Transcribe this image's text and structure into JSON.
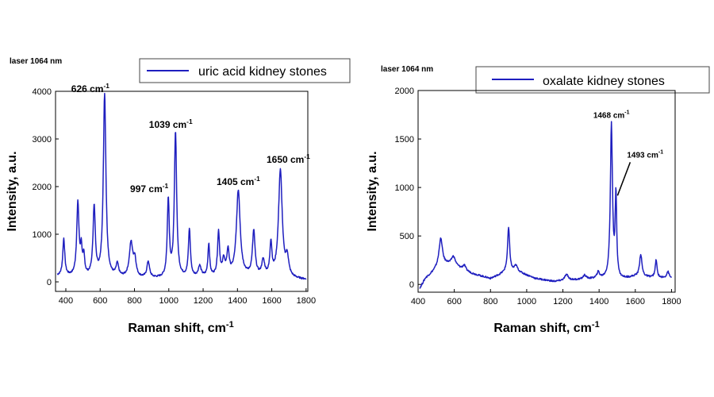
{
  "chart_data": [
    {
      "type": "line",
      "laser_label": "laser 1064 nm",
      "legend": "uric acid kidney stones",
      "xlabel": "Raman shift, cm",
      "xlabel_sup": "-1",
      "ylabel": "Intensity, a.u.",
      "xlim": [
        340,
        1810
      ],
      "ylim": [
        -200,
        4000
      ],
      "xticks": [
        400,
        600,
        800,
        1000,
        1200,
        1400,
        1600,
        1800
      ],
      "yticks": [
        0,
        1000,
        2000,
        3000,
        4000
      ],
      "color": "#1f1fbf",
      "series": [
        {
          "name": "uric acid kidney stones",
          "baseline": [
            [
              350,
              120
            ],
            [
              600,
              80
            ],
            [
              1000,
              60
            ],
            [
              1400,
              120
            ],
            [
              1800,
              40
            ]
          ],
          "peaks": [
            [
              388,
              780,
              7
            ],
            [
              470,
              1520,
              8
            ],
            [
              490,
              520,
              6
            ],
            [
              505,
              380,
              6
            ],
            [
              565,
              1450,
              8
            ],
            [
              626,
              3850,
              9
            ],
            [
              700,
              260,
              9
            ],
            [
              780,
              720,
              12
            ],
            [
              802,
              350,
              9
            ],
            [
              880,
              340,
              9
            ],
            [
              997,
              1640,
              7
            ],
            [
              1039,
              3060,
              8
            ],
            [
              1120,
              1000,
              7
            ],
            [
              1180,
              220,
              10
            ],
            [
              1233,
              680,
              6
            ],
            [
              1290,
              920,
              7
            ],
            [
              1320,
              320,
              8
            ],
            [
              1345,
              500,
              8
            ],
            [
              1405,
              1780,
              13
            ],
            [
              1495,
              930,
              9
            ],
            [
              1550,
              320,
              10
            ],
            [
              1595,
              680,
              7
            ],
            [
              1650,
              2250,
              13
            ],
            [
              1690,
              380,
              10
            ]
          ],
          "range": [
            350,
            1800
          ]
        }
      ],
      "annotations": [
        {
          "text": "626 cm",
          "sup": "-1",
          "x": 626,
          "y": 3850
        },
        {
          "text": "1039 cm",
          "sup": "-1",
          "x": 1039,
          "y": 3100
        },
        {
          "text": "997 cm",
          "sup": "-1",
          "x": 997,
          "y": 1750
        },
        {
          "text": "1405 cm",
          "sup": "-1",
          "x": 1405,
          "y": 1900
        },
        {
          "text": "1650 cm",
          "sup": "-1",
          "x": 1650,
          "y": 2300
        }
      ]
    },
    {
      "type": "line",
      "laser_label": "laser 1064 nm",
      "legend": "oxalate kidney stones",
      "xlabel": "Raman shift, cm",
      "xlabel_sup": "-1",
      "ylabel": "Intensity, a.u.",
      "xlim": [
        400,
        1820
      ],
      "ylim": [
        -80,
        2000
      ],
      "xticks": [
        400,
        600,
        800,
        1000,
        1200,
        1400,
        1600,
        1800
      ],
      "yticks": [
        0,
        500,
        1000,
        1500,
        2000
      ],
      "color": "#1f1fbf",
      "series": [
        {
          "name": "oxalate kidney stones",
          "baseline": [
            [
              410,
              -40
            ],
            [
              440,
              60
            ],
            [
              500,
              150
            ],
            [
              560,
              200
            ],
            [
              620,
              170
            ],
            [
              700,
              110
            ],
            [
              800,
              60
            ],
            [
              880,
              120
            ],
            [
              950,
              130
            ],
            [
              1050,
              60
            ],
            [
              1150,
              30
            ],
            [
              1300,
              50
            ],
            [
              1400,
              60
            ],
            [
              1500,
              40
            ],
            [
              1600,
              80
            ],
            [
              1800,
              60
            ]
          ],
          "peaks": [
            [
              525,
              300,
              12
            ],
            [
              595,
              100,
              14
            ],
            [
              655,
              50,
              10
            ],
            [
              900,
              460,
              7
            ],
            [
              940,
              60,
              10
            ],
            [
              1220,
              60,
              12
            ],
            [
              1320,
              40,
              10
            ],
            [
              1395,
              60,
              8
            ],
            [
              1468,
              1590,
              7
            ],
            [
              1493,
              860,
              5
            ],
            [
              1630,
              230,
              8
            ],
            [
              1715,
              180,
              6
            ],
            [
              1780,
              70,
              8
            ]
          ],
          "range": [
            410,
            1800
          ]
        }
      ],
      "annotations": [
        {
          "text": "1468 cm",
          "sup": "-1",
          "x": 1468,
          "y": 1650
        },
        {
          "text": "1493 cm",
          "sup": "-1",
          "x": 1493,
          "y": 900
        }
      ]
    }
  ]
}
